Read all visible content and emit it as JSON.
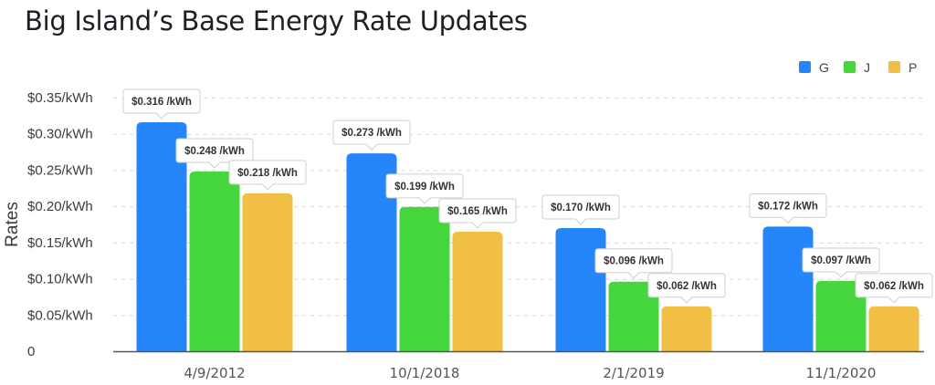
{
  "chart_data": {
    "type": "bar",
    "title": "Big Island’s Base Energy Rate Updates",
    "xlabel": "",
    "ylabel": "Rates",
    "ylim": [
      0,
      0.35
    ],
    "grid": true,
    "legend_position": "top-right",
    "y_ticks": [
      0,
      0.05,
      0.1,
      0.15,
      0.2,
      0.25,
      0.3,
      0.35
    ],
    "y_tick_labels": [
      "0",
      "$0.05/kWh",
      "$0.10/kWh",
      "$0.15/kWh",
      "$0.20/kWh",
      "$0.25/kWh",
      "$0.30/kWh",
      "$0.35/kWh"
    ],
    "categories": [
      "4/9/2012",
      "10/1/2018",
      "2/1/2019",
      "11/1/2020"
    ],
    "series": [
      {
        "name": "G",
        "color": "#2585fb",
        "values": [
          0.316,
          0.273,
          0.17,
          0.172
        ],
        "labels": [
          "$0.316 /kWh",
          "$0.273 /kWh",
          "$0.170 /kWh",
          "$0.172 /kWh"
        ]
      },
      {
        "name": "J",
        "color": "#45d63d",
        "values": [
          0.248,
          0.199,
          0.096,
          0.097
        ],
        "labels": [
          "$0.248 /kWh",
          "$0.199 /kWh",
          "$0.096 /kWh",
          "$0.097 /kWh"
        ]
      },
      {
        "name": "P",
        "color": "#f1bf43",
        "values": [
          0.218,
          0.165,
          0.062,
          0.062
        ],
        "labels": [
          "$0.218 /kWh",
          "$0.165 /kWh",
          "$0.062 /kWh",
          "$0.062 /kWh"
        ]
      }
    ]
  }
}
